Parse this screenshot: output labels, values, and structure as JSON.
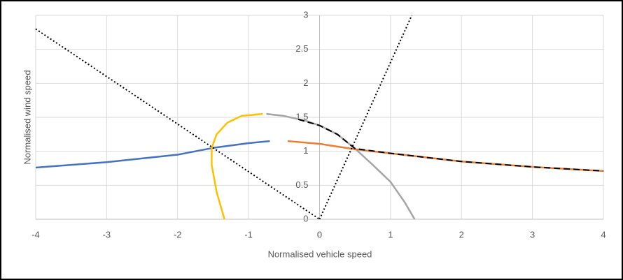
{
  "chart_data": {
    "type": "line",
    "xlabel": "Normalised vehicle speed",
    "ylabel": "Normalised wind speed",
    "xlim": [
      -4,
      4
    ],
    "xticks": [
      -4,
      -3,
      -2,
      -1,
      0,
      1,
      2,
      3,
      4
    ],
    "ylim": [
      0,
      3
    ],
    "yticks": [
      0,
      0.5,
      1,
      1.5,
      2,
      2.5,
      3
    ],
    "grid": true,
    "series": [
      {
        "color": "#4472c4",
        "dash": "solid",
        "x": [
          -4,
          -3,
          -2,
          -1.5,
          -1,
          -0.7
        ],
        "values": [
          0.76,
          0.84,
          0.95,
          1.05,
          1.12,
          1.15
        ]
      },
      {
        "color": "#ffc000",
        "dash": "solid",
        "x": [
          -1.34,
          -1.45,
          -1.52,
          -1.52,
          -1.45,
          -1.3,
          -1.1,
          -0.8
        ],
        "values": [
          0,
          0.4,
          0.8,
          1.05,
          1.25,
          1.42,
          1.52,
          1.55
        ]
      },
      {
        "color": "#a5a5a5",
        "dash": "solid",
        "x": [
          -0.75,
          -0.5,
          -0.2,
          0,
          0.25,
          0.5,
          0.75,
          1,
          1.2,
          1.34
        ],
        "values": [
          1.55,
          1.52,
          1.45,
          1.38,
          1.25,
          1.04,
          0.8,
          0.55,
          0.25,
          0
        ]
      },
      {
        "color": "#ed7d31",
        "dash": "solid",
        "x": [
          -0.45,
          0,
          0.5,
          1,
          1.5,
          2,
          2.5,
          3,
          3.5,
          4
        ],
        "values": [
          1.15,
          1.11,
          1.03,
          0.97,
          0.91,
          0.85,
          0.81,
          0.77,
          0.74,
          0.71
        ]
      },
      {
        "color": "#000000",
        "dash": "dashed",
        "x": [
          -0.3,
          0,
          0.25,
          0.5,
          1,
          1.5,
          2,
          2.5,
          3,
          3.5,
          4
        ],
        "values": [
          1.47,
          1.38,
          1.25,
          1.04,
          0.97,
          0.91,
          0.85,
          0.81,
          0.77,
          0.74,
          0.71
        ]
      },
      {
        "color": "#000000",
        "dash": "dotted",
        "x": [
          -4,
          0
        ],
        "values": [
          2.8,
          0
        ]
      },
      {
        "color": "#000000",
        "dash": "dotted",
        "x": [
          0,
          1.3
        ],
        "values": [
          0,
          3
        ]
      }
    ]
  }
}
